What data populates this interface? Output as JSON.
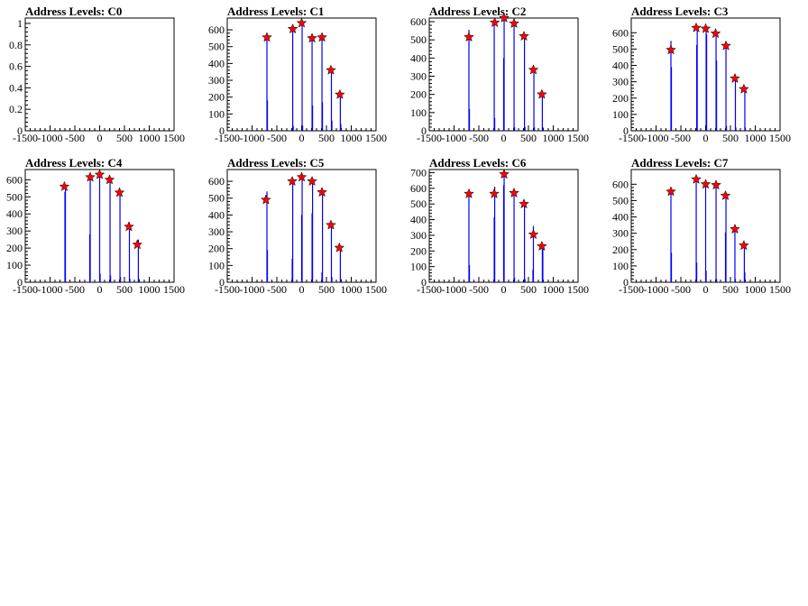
{
  "page": {
    "background": "#ffffff"
  },
  "colors": {
    "histogram": "#0000ff",
    "peak_marker": "#ff0000",
    "marker_outline": "#000000",
    "axis": "#000000"
  },
  "icons": {
    "peak_marker": "red-star-marker"
  },
  "chart_data": [
    {
      "type": "bar",
      "title": "Address Levels: C0",
      "xlabel": "",
      "ylabel": "",
      "xlim": [
        -1500,
        1500
      ],
      "ylim": [
        0,
        1.05
      ],
      "xticks": [
        -1500,
        -1000,
        -500,
        0,
        500,
        1000,
        1500
      ],
      "yticks": [
        0,
        0.2,
        0.4,
        0.6,
        0.8,
        1
      ],
      "ytick_labels": [
        "0",
        "0.2",
        "0.4",
        "0.6",
        "0.8",
        "1"
      ],
      "bars": [],
      "peaks": []
    },
    {
      "type": "bar",
      "title": "Address Levels: C1",
      "xlabel": "",
      "ylabel": "",
      "xlim": [
        -1500,
        1500
      ],
      "ylim": [
        0,
        670
      ],
      "xticks": [
        -1500,
        -1000,
        -500,
        0,
        500,
        1000,
        1500
      ],
      "yticks": [
        0,
        100,
        200,
        300,
        400,
        500,
        600
      ],
      "bars": [
        [
          -700,
          560
        ],
        [
          -690,
          180
        ],
        [
          -180,
          610
        ],
        [
          -170,
          30
        ],
        [
          10,
          640
        ],
        [
          20,
          30
        ],
        [
          210,
          550
        ],
        [
          220,
          150
        ],
        [
          410,
          555
        ],
        [
          420,
          170
        ],
        [
          600,
          370
        ],
        [
          610,
          60
        ],
        [
          780,
          230
        ],
        [
          790,
          40
        ]
      ],
      "peaks": [
        [
          -700,
          555
        ],
        [
          -180,
          605
        ],
        [
          0,
          640
        ],
        [
          210,
          550
        ],
        [
          410,
          555
        ],
        [
          590,
          360
        ],
        [
          770,
          215
        ]
      ]
    },
    {
      "type": "bar",
      "title": "Address Levels: C2",
      "xlabel": "",
      "ylabel": "",
      "xlim": [
        -1500,
        1500
      ],
      "ylim": [
        0,
        620
      ],
      "xticks": [
        -1500,
        -1000,
        -500,
        0,
        500,
        1000,
        1500
      ],
      "yticks": [
        0,
        100,
        200,
        300,
        400,
        500,
        600
      ],
      "bars": [
        [
          -700,
          555
        ],
        [
          -690,
          120
        ],
        [
          -190,
          600
        ],
        [
          -180,
          70
        ],
        [
          0,
          400
        ],
        [
          10,
          620
        ],
        [
          210,
          585
        ],
        [
          220,
          20
        ],
        [
          420,
          520
        ],
        [
          430,
          20
        ],
        [
          610,
          340
        ],
        [
          620,
          20
        ],
        [
          780,
          210
        ],
        [
          790,
          20
        ]
      ],
      "peaks": [
        [
          -700,
          515
        ],
        [
          -180,
          595
        ],
        [
          10,
          620
        ],
        [
          210,
          590
        ],
        [
          410,
          520
        ],
        [
          600,
          335
        ],
        [
          770,
          200
        ]
      ]
    },
    {
      "type": "bar",
      "title": "Address Levels: C3",
      "xlabel": "",
      "ylabel": "",
      "xlim": [
        -1500,
        1500
      ],
      "ylim": [
        0,
        690
      ],
      "xticks": [
        -1500,
        -1000,
        -500,
        0,
        500,
        1000,
        1500
      ],
      "yticks": [
        0,
        100,
        200,
        300,
        400,
        500,
        600
      ],
      "bars": [
        [
          -700,
          550
        ],
        [
          -690,
          390
        ],
        [
          -180,
          525
        ],
        [
          -170,
          630
        ],
        [
          10,
          640
        ],
        [
          20,
          590
        ],
        [
          210,
          600
        ],
        [
          220,
          430
        ],
        [
          410,
          530
        ],
        [
          420,
          30
        ],
        [
          600,
          340
        ],
        [
          610,
          20
        ],
        [
          790,
          270
        ],
        [
          800,
          20
        ]
      ],
      "peaks": [
        [
          -700,
          495
        ],
        [
          -190,
          630
        ],
        [
          0,
          625
        ],
        [
          200,
          595
        ],
        [
          410,
          520
        ],
        [
          590,
          320
        ],
        [
          770,
          255
        ]
      ]
    },
    {
      "type": "bar",
      "title": "Address Levels: C4",
      "xlabel": "",
      "ylabel": "",
      "xlim": [
        -1500,
        1500
      ],
      "ylim": [
        0,
        660
      ],
      "xticks": [
        -1500,
        -1000,
        -500,
        0,
        500,
        1000,
        1500
      ],
      "yticks": [
        0,
        100,
        200,
        300,
        400,
        500,
        600
      ],
      "bars": [
        [
          -700,
          530
        ],
        [
          -690,
          560
        ],
        [
          -200,
          280
        ],
        [
          -190,
          620
        ],
        [
          0,
          630
        ],
        [
          10,
          50
        ],
        [
          210,
          600
        ],
        [
          220,
          40
        ],
        [
          410,
          520
        ],
        [
          420,
          30
        ],
        [
          600,
          350
        ],
        [
          610,
          20
        ],
        [
          780,
          250
        ],
        [
          790,
          20
        ]
      ],
      "peaks": [
        [
          -710,
          560
        ],
        [
          -190,
          615
        ],
        [
          0,
          630
        ],
        [
          200,
          600
        ],
        [
          400,
          525
        ],
        [
          590,
          325
        ],
        [
          760,
          220
        ]
      ]
    },
    {
      "type": "bar",
      "title": "Address Levels: C5",
      "xlabel": "",
      "ylabel": "",
      "xlim": [
        -1500,
        1500
      ],
      "ylim": [
        0,
        670
      ],
      "xticks": [
        -1500,
        -1000,
        -500,
        0,
        500,
        1000,
        1500
      ],
      "yticks": [
        0,
        100,
        200,
        300,
        400,
        500,
        600
      ],
      "bars": [
        [
          -700,
          540
        ],
        [
          -690,
          190
        ],
        [
          -190,
          140
        ],
        [
          -180,
          610
        ],
        [
          0,
          400
        ],
        [
          10,
          640
        ],
        [
          210,
          410
        ],
        [
          220,
          600
        ],
        [
          410,
          60
        ],
        [
          420,
          550
        ],
        [
          600,
          360
        ],
        [
          610,
          30
        ],
        [
          780,
          210
        ],
        [
          790,
          20
        ]
      ],
      "peaks": [
        [
          -720,
          490
        ],
        [
          -190,
          600
        ],
        [
          0,
          625
        ],
        [
          210,
          600
        ],
        [
          410,
          535
        ],
        [
          590,
          340
        ],
        [
          760,
          205
        ]
      ]
    },
    {
      "type": "bar",
      "title": "Address Levels: C6",
      "xlabel": "",
      "ylabel": "",
      "xlim": [
        -1500,
        1500
      ],
      "ylim": [
        0,
        720
      ],
      "xticks": [
        -1500,
        -1000,
        -500,
        0,
        500,
        1000,
        1500
      ],
      "yticks": [
        0,
        100,
        200,
        300,
        400,
        500,
        600,
        700
      ],
      "bars": [
        [
          -700,
          560
        ],
        [
          -690,
          110
        ],
        [
          -190,
          415
        ],
        [
          -180,
          610
        ],
        [
          0,
          620
        ],
        [
          10,
          690
        ],
        [
          210,
          590
        ],
        [
          220,
          30
        ],
        [
          420,
          500
        ],
        [
          430,
          20
        ],
        [
          590,
          80
        ],
        [
          600,
          360
        ],
        [
          780,
          240
        ],
        [
          790,
          210
        ]
      ],
      "peaks": [
        [
          -700,
          565
        ],
        [
          -190,
          565
        ],
        [
          10,
          690
        ],
        [
          210,
          570
        ],
        [
          410,
          500
        ],
        [
          600,
          305
        ],
        [
          770,
          230
        ]
      ]
    },
    {
      "type": "bar",
      "title": "Address Levels: C7",
      "xlabel": "",
      "ylabel": "",
      "xlim": [
        -1500,
        1500
      ],
      "ylim": [
        0,
        690
      ],
      "xticks": [
        -1500,
        -1000,
        -500,
        0,
        500,
        1000,
        1500
      ],
      "yticks": [
        0,
        100,
        200,
        300,
        400,
        500,
        600
      ],
      "bars": [
        [
          -700,
          560
        ],
        [
          -690,
          180
        ],
        [
          -190,
          620
        ],
        [
          -180,
          120
        ],
        [
          0,
          600
        ],
        [
          10,
          70
        ],
        [
          210,
          600
        ],
        [
          220,
          20
        ],
        [
          400,
          305
        ],
        [
          410,
          530
        ],
        [
          590,
          350
        ],
        [
          600,
          20
        ],
        [
          780,
          240
        ],
        [
          790,
          60
        ]
      ],
      "peaks": [
        [
          -700,
          555
        ],
        [
          -190,
          630
        ],
        [
          0,
          600
        ],
        [
          210,
          595
        ],
        [
          400,
          530
        ],
        [
          590,
          325
        ],
        [
          770,
          225
        ]
      ]
    }
  ]
}
